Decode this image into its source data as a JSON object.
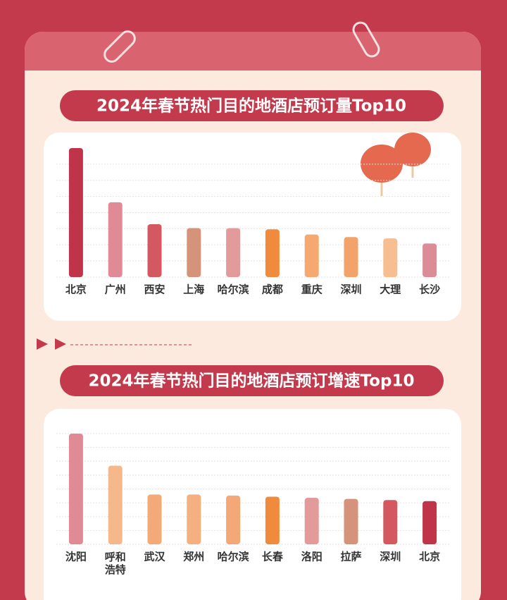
{
  "chart_data": [
    {
      "type": "bar",
      "title": "2024年春节热门目的地酒店预订量Top10",
      "categories": [
        "北京",
        "广州",
        "西安",
        "上海",
        "哈尔滨",
        "成都",
        "重庆",
        "深圳",
        "大理",
        "长沙"
      ],
      "values": [
        100,
        58,
        41,
        38,
        38,
        37,
        33,
        31,
        30,
        26
      ],
      "colors": [
        "#c0344a",
        "#e08a96",
        "#d4585f",
        "#d4937a",
        "#e39a9a",
        "#f08a3c",
        "#f5a870",
        "#f3a36a",
        "#f7bf90",
        "#db8c96"
      ],
      "ylim": [
        0,
        100
      ],
      "yticks": [
        0,
        12.5,
        25,
        37.5,
        50,
        62.5,
        75,
        87.5
      ],
      "grid": true
    },
    {
      "type": "bar",
      "title": "2024年春节热门目的地酒店预订增速Top10",
      "categories": [
        "沈阳",
        "呼和\n浩特",
        "武汉",
        "郑州",
        "哈尔滨",
        "长春",
        "洛阳",
        "拉萨",
        "深圳",
        "北京"
      ],
      "values": [
        100,
        71,
        45,
        45,
        44,
        43,
        42,
        41,
        40,
        39
      ],
      "colors": [
        "#e08a96",
        "#f5b88a",
        "#f3aa78",
        "#f5b080",
        "#f4a878",
        "#f08a3c",
        "#e39a9a",
        "#d4937a",
        "#d4585f",
        "#c0344a"
      ],
      "ylim": [
        0,
        100
      ],
      "yticks": [
        0,
        12.5,
        25,
        37.5,
        50,
        62.5,
        75,
        87.5,
        100
      ],
      "grid": true
    }
  ]
}
